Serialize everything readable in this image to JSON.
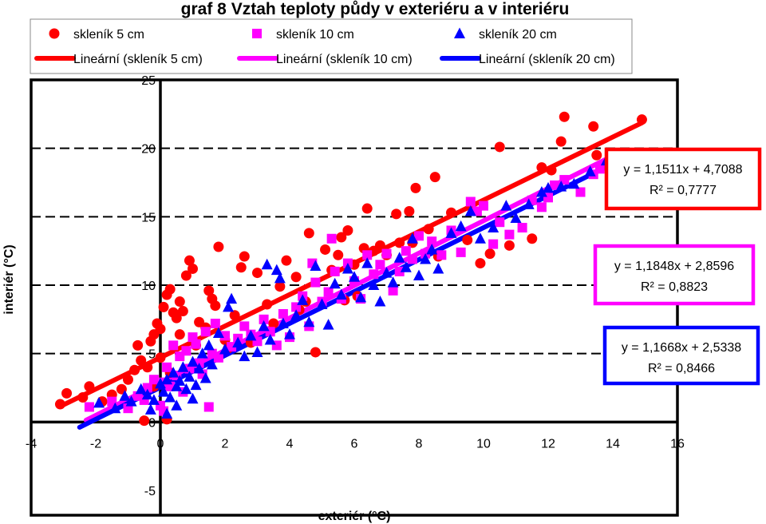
{
  "chart_data": {
    "type": "scatter",
    "title": "graf 8 Vztah teploty půdy v exteriéru a v interiéru",
    "xlabel": "exteriér (°C)",
    "ylabel": "interiér (°C)",
    "xlim": [
      -4,
      16
    ],
    "ylim": [
      -5,
      25
    ],
    "x_ticks": [
      "-4",
      "-2",
      "0",
      "2",
      "4",
      "6",
      "8",
      "10",
      "12",
      "14",
      "16"
    ],
    "y_ticks": [
      "-5",
      "0",
      "5",
      "10",
      "15",
      "20",
      "25"
    ],
    "grid": "dashed horizontal",
    "legend_position": "top",
    "series": [
      {
        "name": "skleník 5 cm",
        "marker": "circle",
        "color": "#ff0000",
        "trend_label": "Lineární (skleník 5 cm)",
        "equation": "y = 1,1511x + 4,7088",
        "r2": "R² = 0,7777",
        "fit": {
          "slope": 1.1511,
          "intercept": 4.7088,
          "x_range": [
            -3.1,
            14.9
          ]
        },
        "points": [
          [
            -3.1,
            1.3
          ],
          [
            -2.9,
            2.1
          ],
          [
            -2.4,
            1.8
          ],
          [
            -2.2,
            2.6
          ],
          [
            -1.8,
            1.5
          ],
          [
            -1.5,
            2.0
          ],
          [
            -1.2,
            2.4
          ],
          [
            -1.0,
            3.1
          ],
          [
            -0.8,
            3.8
          ],
          [
            -0.7,
            5.6
          ],
          [
            -0.6,
            4.5
          ],
          [
            -0.4,
            4.0
          ],
          [
            -0.3,
            5.9
          ],
          [
            -0.2,
            6.4
          ],
          [
            -0.1,
            7.2
          ],
          [
            0.0,
            6.8
          ],
          [
            0.1,
            8.4
          ],
          [
            0.2,
            9.3
          ],
          [
            0.3,
            9.7
          ],
          [
            0.4,
            8.0
          ],
          [
            0.5,
            7.6
          ],
          [
            0.6,
            8.8
          ],
          [
            0.7,
            8.1
          ],
          [
            0.8,
            10.7
          ],
          [
            0.9,
            11.8
          ],
          [
            1.0,
            11.2
          ],
          [
            1.2,
            7.3
          ],
          [
            1.4,
            6.9
          ],
          [
            1.5,
            9.6
          ],
          [
            1.6,
            9.0
          ],
          [
            1.7,
            8.5
          ],
          [
            1.8,
            12.8
          ],
          [
            2.0,
            6.0
          ],
          [
            2.1,
            5.4
          ],
          [
            2.3,
            7.8
          ],
          [
            2.5,
            11.3
          ],
          [
            2.6,
            12.1
          ],
          [
            2.8,
            5.8
          ],
          [
            3.0,
            10.9
          ],
          [
            3.3,
            8.6
          ],
          [
            3.5,
            7.2
          ],
          [
            3.7,
            9.9
          ],
          [
            3.9,
            11.8
          ],
          [
            4.2,
            10.6
          ],
          [
            4.5,
            8.8
          ],
          [
            4.6,
            13.8
          ],
          [
            4.8,
            5.1
          ],
          [
            5.1,
            12.6
          ],
          [
            5.3,
            11.1
          ],
          [
            5.5,
            12.2
          ],
          [
            5.6,
            13.5
          ],
          [
            5.8,
            14.0
          ],
          [
            6.0,
            11.5
          ],
          [
            6.1,
            9.2
          ],
          [
            6.3,
            12.7
          ],
          [
            6.4,
            15.6
          ],
          [
            6.6,
            12.5
          ],
          [
            6.8,
            12.9
          ],
          [
            7.0,
            12.2
          ],
          [
            7.3,
            15.2
          ],
          [
            7.4,
            13.1
          ],
          [
            7.7,
            15.4
          ],
          [
            7.8,
            13.1
          ],
          [
            7.9,
            17.1
          ],
          [
            8.3,
            14.1
          ],
          [
            8.5,
            17.9
          ],
          [
            8.6,
            12.1
          ],
          [
            9.5,
            13.3
          ],
          [
            9.9,
            11.6
          ],
          [
            10.2,
            12.3
          ],
          [
            10.5,
            20.1
          ],
          [
            10.8,
            12.9
          ],
          [
            11.5,
            13.4
          ],
          [
            11.8,
            18.6
          ],
          [
            12.1,
            18.4
          ],
          [
            12.4,
            20.5
          ],
          [
            12.5,
            22.3
          ],
          [
            13.4,
            21.6
          ],
          [
            13.5,
            19.5
          ],
          [
            14.9,
            22.1
          ],
          [
            0.3,
            3.6
          ],
          [
            0.0,
            4.7
          ],
          [
            -0.5,
            0.1
          ],
          [
            0.2,
            0.2
          ],
          [
            -0.2,
            2.6
          ],
          [
            0.6,
            6.4
          ],
          [
            1.1,
            5.6
          ],
          [
            4.3,
            8.2
          ],
          [
            5.7,
            8.9
          ],
          [
            9.0,
            15.3
          ]
        ]
      },
      {
        "name": "skleník 10 cm",
        "marker": "square",
        "color": "#ff00ff",
        "trend_label": "Lineární (skleník 10 cm)",
        "equation": "y = 1,1848x + 2,8596",
        "r2": "R² = 0,8823",
        "fit": {
          "slope": 1.1848,
          "intercept": 2.8596,
          "x_range": [
            -2.3,
            13.8
          ]
        },
        "points": [
          [
            -2.2,
            1.1
          ],
          [
            -1.5,
            1.5
          ],
          [
            -1.0,
            1.0
          ],
          [
            -0.7,
            1.9
          ],
          [
            -0.4,
            2.5
          ],
          [
            -0.2,
            3.1
          ],
          [
            0.0,
            1.2
          ],
          [
            0.1,
            0.8
          ],
          [
            0.2,
            4.0
          ],
          [
            0.3,
            2.6
          ],
          [
            0.4,
            5.6
          ],
          [
            0.5,
            3.4
          ],
          [
            0.6,
            4.8
          ],
          [
            0.7,
            2.2
          ],
          [
            0.8,
            5.2
          ],
          [
            0.9,
            3.9
          ],
          [
            1.0,
            6.2
          ],
          [
            1.1,
            5.7
          ],
          [
            1.2,
            4.3
          ],
          [
            1.3,
            3.5
          ],
          [
            1.4,
            6.6
          ],
          [
            1.6,
            5.0
          ],
          [
            1.7,
            7.2
          ],
          [
            1.8,
            4.7
          ],
          [
            2.0,
            6.3
          ],
          [
            2.2,
            5.5
          ],
          [
            2.4,
            6.1
          ],
          [
            2.6,
            7.0
          ],
          [
            2.8,
            6.4
          ],
          [
            3.0,
            5.9
          ],
          [
            3.2,
            7.5
          ],
          [
            3.4,
            6.6
          ],
          [
            3.6,
            5.6
          ],
          [
            3.8,
            7.9
          ],
          [
            4.0,
            6.2
          ],
          [
            4.2,
            8.4
          ],
          [
            4.4,
            9.2
          ],
          [
            4.6,
            7.0
          ],
          [
            4.8,
            10.2
          ],
          [
            5.0,
            8.8
          ],
          [
            5.2,
            9.5
          ],
          [
            5.4,
            11.0
          ],
          [
            5.6,
            9.0
          ],
          [
            5.8,
            11.6
          ],
          [
            6.0,
            10.3
          ],
          [
            6.2,
            9.0
          ],
          [
            6.4,
            12.2
          ],
          [
            6.6,
            10.8
          ],
          [
            6.8,
            11.5
          ],
          [
            7.0,
            12.3
          ],
          [
            7.2,
            9.6
          ],
          [
            7.4,
            11.0
          ],
          [
            7.6,
            12.5
          ],
          [
            7.8,
            11.9
          ],
          [
            8.0,
            13.6
          ],
          [
            8.2,
            12.3
          ],
          [
            8.4,
            13.2
          ],
          [
            8.7,
            12.2
          ],
          [
            9.0,
            14.0
          ],
          [
            9.3,
            12.4
          ],
          [
            9.6,
            16.1
          ],
          [
            9.8,
            15.4
          ],
          [
            10.0,
            15.8
          ],
          [
            10.3,
            13.0
          ],
          [
            10.5,
            14.6
          ],
          [
            10.8,
            13.7
          ],
          [
            11.2,
            14.2
          ],
          [
            11.5,
            16.2
          ],
          [
            11.8,
            15.7
          ],
          [
            12.0,
            16.4
          ],
          [
            12.2,
            17.3
          ],
          [
            12.5,
            17.7
          ],
          [
            13.0,
            16.8
          ],
          [
            13.4,
            18.1
          ],
          [
            13.6,
            18.5
          ],
          [
            5.3,
            13.4
          ],
          [
            4.7,
            11.6
          ],
          [
            -0.5,
            1.6
          ],
          [
            0.1,
            2.9
          ],
          [
            1.5,
            1.1
          ]
        ]
      },
      {
        "name": "skleník 20 cm",
        "marker": "triangle",
        "color": "#0000ff",
        "trend_label": "Lineární (skleník 20 cm)",
        "equation": "y = 1,1668x + 2,5338",
        "r2": "R² = 0,8466",
        "fit": {
          "slope": 1.1668,
          "intercept": 2.5338,
          "x_range": [
            -2.5,
            13.9
          ]
        },
        "points": [
          [
            -1.9,
            1.4
          ],
          [
            -1.4,
            1.0
          ],
          [
            -1.1,
            1.9
          ],
          [
            -0.9,
            1.5
          ],
          [
            -0.6,
            2.4
          ],
          [
            -0.4,
            2.0
          ],
          [
            -0.2,
            1.6
          ],
          [
            0.0,
            2.8
          ],
          [
            0.1,
            2.2
          ],
          [
            0.2,
            3.1
          ],
          [
            0.3,
            1.8
          ],
          [
            0.4,
            3.6
          ],
          [
            0.5,
            2.6
          ],
          [
            0.6,
            3.0
          ],
          [
            0.7,
            4.0
          ],
          [
            0.8,
            2.4
          ],
          [
            0.9,
            3.3
          ],
          [
            1.0,
            4.4
          ],
          [
            1.1,
            2.7
          ],
          [
            1.2,
            3.9
          ],
          [
            1.3,
            5.0
          ],
          [
            1.4,
            3.2
          ],
          [
            1.5,
            5.6
          ],
          [
            1.6,
            4.2
          ],
          [
            1.8,
            6.5
          ],
          [
            2.0,
            5.3
          ],
          [
            2.1,
            8.4
          ],
          [
            2.2,
            9.0
          ],
          [
            2.4,
            5.8
          ],
          [
            2.6,
            4.8
          ],
          [
            2.8,
            6.3
          ],
          [
            3.0,
            5.1
          ],
          [
            3.2,
            7.0
          ],
          [
            3.4,
            6.0
          ],
          [
            3.6,
            11.1
          ],
          [
            3.7,
            10.5
          ],
          [
            3.8,
            7.2
          ],
          [
            4.0,
            6.4
          ],
          [
            4.2,
            7.8
          ],
          [
            4.4,
            8.9
          ],
          [
            4.6,
            7.3
          ],
          [
            4.8,
            11.4
          ],
          [
            5.0,
            8.6
          ],
          [
            5.2,
            7.1
          ],
          [
            5.4,
            10.1
          ],
          [
            5.6,
            9.3
          ],
          [
            5.8,
            11.2
          ],
          [
            6.0,
            10.6
          ],
          [
            6.2,
            9.1
          ],
          [
            6.4,
            11.6
          ],
          [
            6.6,
            10.0
          ],
          [
            6.8,
            8.8
          ],
          [
            7.0,
            10.9
          ],
          [
            7.2,
            10.2
          ],
          [
            7.4,
            12.0
          ],
          [
            7.6,
            11.3
          ],
          [
            7.8,
            13.4
          ],
          [
            8.0,
            10.7
          ],
          [
            8.2,
            11.9
          ],
          [
            8.4,
            12.6
          ],
          [
            8.6,
            11.2
          ],
          [
            9.0,
            13.8
          ],
          [
            9.3,
            14.3
          ],
          [
            9.6,
            15.4
          ],
          [
            9.9,
            13.4
          ],
          [
            10.3,
            14.2
          ],
          [
            10.7,
            15.8
          ],
          [
            11.0,
            14.9
          ],
          [
            11.4,
            15.9
          ],
          [
            11.8,
            16.8
          ],
          [
            12.0,
            17.1
          ],
          [
            12.4,
            17.2
          ],
          [
            12.8,
            17.4
          ],
          [
            13.3,
            18.3
          ],
          [
            13.8,
            19.1
          ],
          [
            0.5,
            1.2
          ],
          [
            -0.3,
            0.9
          ],
          [
            0.2,
            0.6
          ],
          [
            1.0,
            1.7
          ],
          [
            3.3,
            11.5
          ]
        ]
      }
    ]
  }
}
